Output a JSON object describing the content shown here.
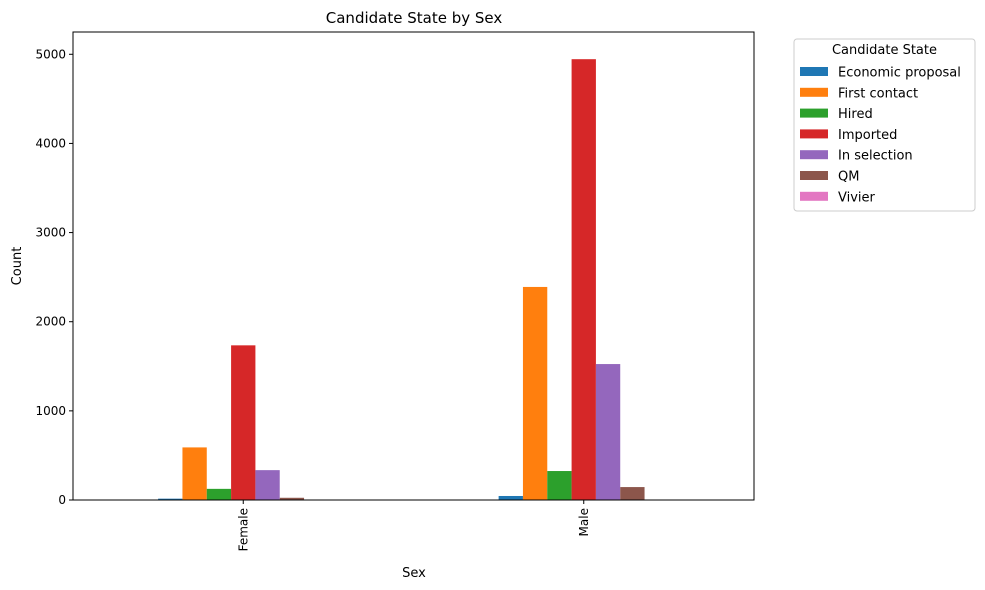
{
  "chart_data": {
    "type": "bar",
    "title": "Candidate State by Sex",
    "xlabel": "Sex",
    "ylabel": "Count",
    "categories": [
      "Female",
      "Male"
    ],
    "ylim": [
      0,
      5250
    ],
    "yticks": [
      0,
      1000,
      2000,
      3000,
      4000,
      5000
    ],
    "grid": false,
    "legend_title": "Candidate State",
    "legend_position": "outside-top-right",
    "series": [
      {
        "name": "Economic proposal",
        "color": "#1f77b4",
        "values": [
          15,
          45
        ]
      },
      {
        "name": "First contact",
        "color": "#ff7f0e",
        "values": [
          590,
          2390
        ]
      },
      {
        "name": "Hired",
        "color": "#2ca02c",
        "values": [
          125,
          325
        ]
      },
      {
        "name": "Imported",
        "color": "#d62728",
        "values": [
          1735,
          4945
        ]
      },
      {
        "name": "In selection",
        "color": "#9467bd",
        "values": [
          335,
          1525
        ]
      },
      {
        "name": "QM",
        "color": "#8c564b",
        "values": [
          25,
          145
        ]
      },
      {
        "name": "Vivier",
        "color": "#e377c2",
        "values": [
          2,
          5
        ]
      }
    ]
  }
}
